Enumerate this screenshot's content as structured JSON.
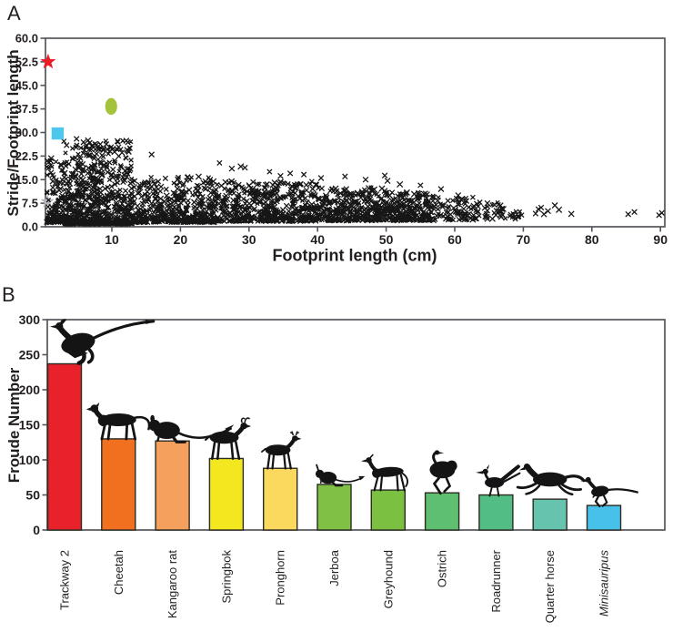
{
  "figure": {
    "panel_a_label": "A",
    "panel_b_label": "B",
    "background": "#ffffff",
    "frame_color": "#55565a",
    "text_color": "#231f20"
  },
  "chart_data": [
    {
      "id": "panel_a",
      "type": "scatter",
      "xlabel": "Footprint length (cm)",
      "ylabel": "Stride/Footprint length",
      "xlim": [
        0.3,
        90.6
      ],
      "ylim": [
        0,
        60
      ],
      "x_ticks": [
        10,
        20,
        30,
        40,
        50,
        60,
        70,
        80,
        90
      ],
      "y_ticks": [
        0,
        7.5,
        15,
        22.5,
        30,
        37.5,
        45,
        52.5,
        60
      ],
      "y_tick_labels": [
        "0.0",
        "7.5",
        "15.0",
        "22.5",
        "30.0",
        "37.5",
        "45.0",
        "52.5",
        "60.0"
      ],
      "grid": false,
      "legend": "none",
      "marker": "x",
      "marker_color": "#161616",
      "approx_point_total": 2515,
      "scatter_clusters": [
        {
          "count": 140,
          "x": [
            0.5,
            3
          ],
          "y": [
            1.5,
            23
          ],
          "bias": 3
        },
        {
          "count": 430,
          "x": [
            3,
            8
          ],
          "y": [
            1,
            28
          ],
          "bias": 3
        },
        {
          "count": 340,
          "x": [
            8,
            13
          ],
          "y": [
            1,
            27.5
          ],
          "bias": 3
        },
        {
          "count": 440,
          "x": [
            13,
            25
          ],
          "y": [
            1.5,
            16
          ],
          "bias": 2.2
        },
        {
          "count": 480,
          "x": [
            25,
            40
          ],
          "y": [
            1.8,
            14.5
          ],
          "bias": 2
        },
        {
          "count": 310,
          "x": [
            40,
            50
          ],
          "y": [
            2,
            12.5
          ],
          "bias": 1.8
        },
        {
          "count": 220,
          "x": [
            50,
            57
          ],
          "y": [
            2,
            11
          ],
          "bias": 1.7
        },
        {
          "count": 75,
          "x": [
            57,
            63
          ],
          "y": [
            2.2,
            9.5
          ],
          "bias": 1.5
        },
        {
          "count": 36,
          "x": [
            63,
            67
          ],
          "y": [
            2.5,
            8
          ],
          "bias": 1.4
        },
        {
          "count": 14,
          "x": [
            67,
            70.5
          ],
          "y": [
            2.5,
            6
          ],
          "bias": 1.2
        }
      ],
      "extra_points": [
        [
          15.8,
          23
        ],
        [
          25.7,
          20.3
        ],
        [
          27.5,
          18.5
        ],
        [
          28.8,
          19.2
        ],
        [
          29.4,
          18.8
        ],
        [
          33,
          17.5
        ],
        [
          34.6,
          16.2
        ],
        [
          36,
          17
        ],
        [
          38,
          16.6
        ],
        [
          40.5,
          15.5
        ],
        [
          44,
          16
        ],
        [
          47,
          15
        ],
        [
          49.8,
          16.3
        ],
        [
          50.2,
          14.6
        ],
        [
          52,
          13.5
        ],
        [
          55,
          13.2
        ],
        [
          58,
          12
        ],
        [
          60.5,
          10
        ],
        [
          71.8,
          4.2
        ],
        [
          72.2,
          5.6
        ],
        [
          72.6,
          6.1
        ],
        [
          73,
          4
        ],
        [
          73.6,
          5
        ],
        [
          74.6,
          6.8
        ],
        [
          75.2,
          5.4
        ],
        [
          77,
          4.1
        ],
        [
          85.3,
          4
        ],
        [
          86.2,
          4.7
        ],
        [
          89.8,
          3.7
        ],
        [
          90.2,
          4.4
        ]
      ],
      "highlight_points": [
        {
          "name": "gray-star",
          "shape": "star",
          "x": 0.6,
          "y": 8,
          "color": "#b5b7ba",
          "behind": true
        },
        {
          "name": "red-star",
          "shape": "star",
          "x": 0.7,
          "y": 52.5,
          "color": "#ed1c24"
        },
        {
          "name": "olive-ellipse",
          "shape": "ellipse",
          "x": 9.9,
          "y": 38.3,
          "color": "#a4c23a"
        },
        {
          "name": "cyan-square",
          "shape": "square",
          "x": 2.1,
          "y": 29.7,
          "color": "#4ec7ec"
        }
      ]
    },
    {
      "id": "panel_b",
      "type": "bar",
      "ylabel": "Froude Number",
      "ylim": [
        0,
        300
      ],
      "y_ticks": [
        0,
        50,
        100,
        150,
        200,
        250,
        300
      ],
      "grid": false,
      "categories": [
        "Trackway 2",
        "Cheetah",
        "Kangaroo rat",
        "Springbok",
        "Pronghorn",
        "Jerboa",
        "Greyhound",
        "Ostrich",
        "Roadrunner",
        "Quarter horse",
        "Minisauripus"
      ],
      "values": [
        237,
        130,
        127,
        102,
        88,
        65,
        57,
        53,
        50,
        44,
        35
      ],
      "bar_colors": [
        "#e9212a",
        "#f1701f",
        "#f5a05c",
        "#f3e81f",
        "#fad95e",
        "#80c044",
        "#7cc042",
        "#5fbf70",
        "#52bd85",
        "#66c3ae",
        "#48c1ea"
      ],
      "icons": [
        "feathered-dinosaur",
        "cheetah",
        "kangaroo-rat",
        "springbok",
        "pronghorn",
        "jerboa",
        "greyhound",
        "ostrich",
        "roadrunner",
        "horse",
        "minisauripus"
      ],
      "italic_categories": [
        false,
        false,
        false,
        false,
        false,
        false,
        false,
        false,
        false,
        false,
        true
      ],
      "bar_outline_color": "#2b2b22",
      "silhouette_color": "#141414"
    }
  ]
}
